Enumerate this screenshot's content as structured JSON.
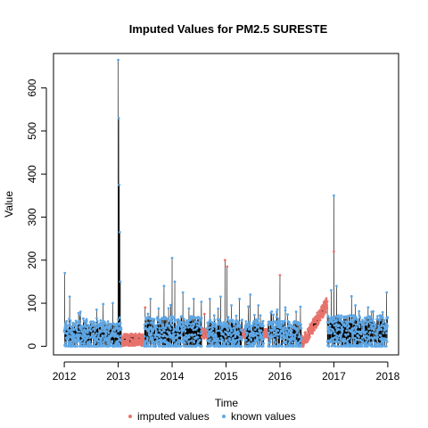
{
  "chart_data": {
    "type": "line",
    "title": "Imputed Values for  PM2.5 SURESTE",
    "xlabel": "Time",
    "ylabel": "Value",
    "xlim": [
      2011.8,
      2018.2
    ],
    "ylim": [
      -20,
      680
    ],
    "x_ticks": [
      2012,
      2013,
      2014,
      2015,
      2016,
      2017,
      2018
    ],
    "y_ticks": [
      0,
      100,
      200,
      300,
      400,
      500,
      600
    ],
    "colors": {
      "imputed": "#E8736C",
      "known": "#5EA7E6",
      "line": "#000000"
    },
    "legend": [
      {
        "label": "imputed values",
        "color": "#E8736C"
      },
      {
        "label": "known values",
        "color": "#5EA7E6"
      }
    ],
    "legend_position": "bottom",
    "series": [
      {
        "name": "known values",
        "segments": [
          {
            "start": 2012.0,
            "end": 2012.98,
            "base": 25,
            "spread": 35,
            "peaks": [
              [
                2012.01,
                170
              ],
              [
                2012.1,
                115
              ],
              [
                2012.3,
                80
              ],
              [
                2012.6,
                85
              ],
              [
                2012.9,
                100
              ]
            ]
          },
          {
            "start": 2012.98,
            "end": 2013.06,
            "base": 30,
            "spread": 40,
            "peaks": [
              [
                2013.0,
                665
              ],
              [
                2013.01,
                530
              ],
              [
                2013.02,
                375
              ],
              [
                2013.03,
                265
              ],
              [
                2013.04,
                150
              ]
            ]
          },
          {
            "start": 2013.48,
            "end": 2014.55,
            "base": 30,
            "spread": 40,
            "peaks": [
              [
                2013.6,
                110
              ],
              [
                2013.85,
                140
              ],
              [
                2014.0,
                205
              ],
              [
                2014.05,
                150
              ],
              [
                2014.2,
                125
              ],
              [
                2014.4,
                110
              ]
            ]
          },
          {
            "start": 2014.65,
            "end": 2015.3,
            "base": 25,
            "spread": 38,
            "peaks": [
              [
                2014.7,
                110
              ],
              [
                2014.9,
                115
              ],
              [
                2015.1,
                95
              ],
              [
                2015.25,
                110
              ]
            ]
          },
          {
            "start": 2015.35,
            "end": 2015.7,
            "base": 25,
            "spread": 35,
            "peaks": [
              [
                2015.45,
                120
              ],
              [
                2015.6,
                95
              ]
            ]
          },
          {
            "start": 2015.78,
            "end": 2016.4,
            "base": 25,
            "spread": 35,
            "peaks": [
              [
                2015.95,
                85
              ],
              [
                2016.1,
                90
              ],
              [
                2016.3,
                80
              ]
            ]
          },
          {
            "start": 2016.88,
            "end": 2018.0,
            "base": 30,
            "spread": 42,
            "peaks": [
              [
                2016.95,
                130
              ],
              [
                2017.0,
                350
              ],
              [
                2017.05,
                140
              ],
              [
                2017.4,
                95
              ],
              [
                2017.7,
                80
              ],
              [
                2017.98,
                125
              ]
            ]
          }
        ]
      },
      {
        "name": "imputed values",
        "segments": [
          {
            "start": 2013.06,
            "end": 2013.48,
            "base": 15,
            "spread": 14,
            "peaks": []
          },
          {
            "start": 2014.55,
            "end": 2014.65,
            "base": 30,
            "spread": 12,
            "peaks": []
          },
          {
            "start": 2015.3,
            "end": 2015.35,
            "base": 30,
            "spread": 10,
            "peaks": []
          },
          {
            "start": 2015.7,
            "end": 2015.78,
            "base": 30,
            "spread": 10,
            "peaks": []
          },
          {
            "start": 2016.4,
            "end": 2016.88,
            "base_from": 5,
            "base_to": 100,
            "spread": 16,
            "peaks": []
          }
        ],
        "spikes": [
          [
            2014.98,
            200
          ],
          [
            2015.02,
            185
          ],
          [
            2016.0,
            165
          ],
          [
            2013.5,
            90
          ],
          [
            2014.6,
            75
          ],
          [
            2017.0,
            220
          ]
        ]
      }
    ]
  }
}
